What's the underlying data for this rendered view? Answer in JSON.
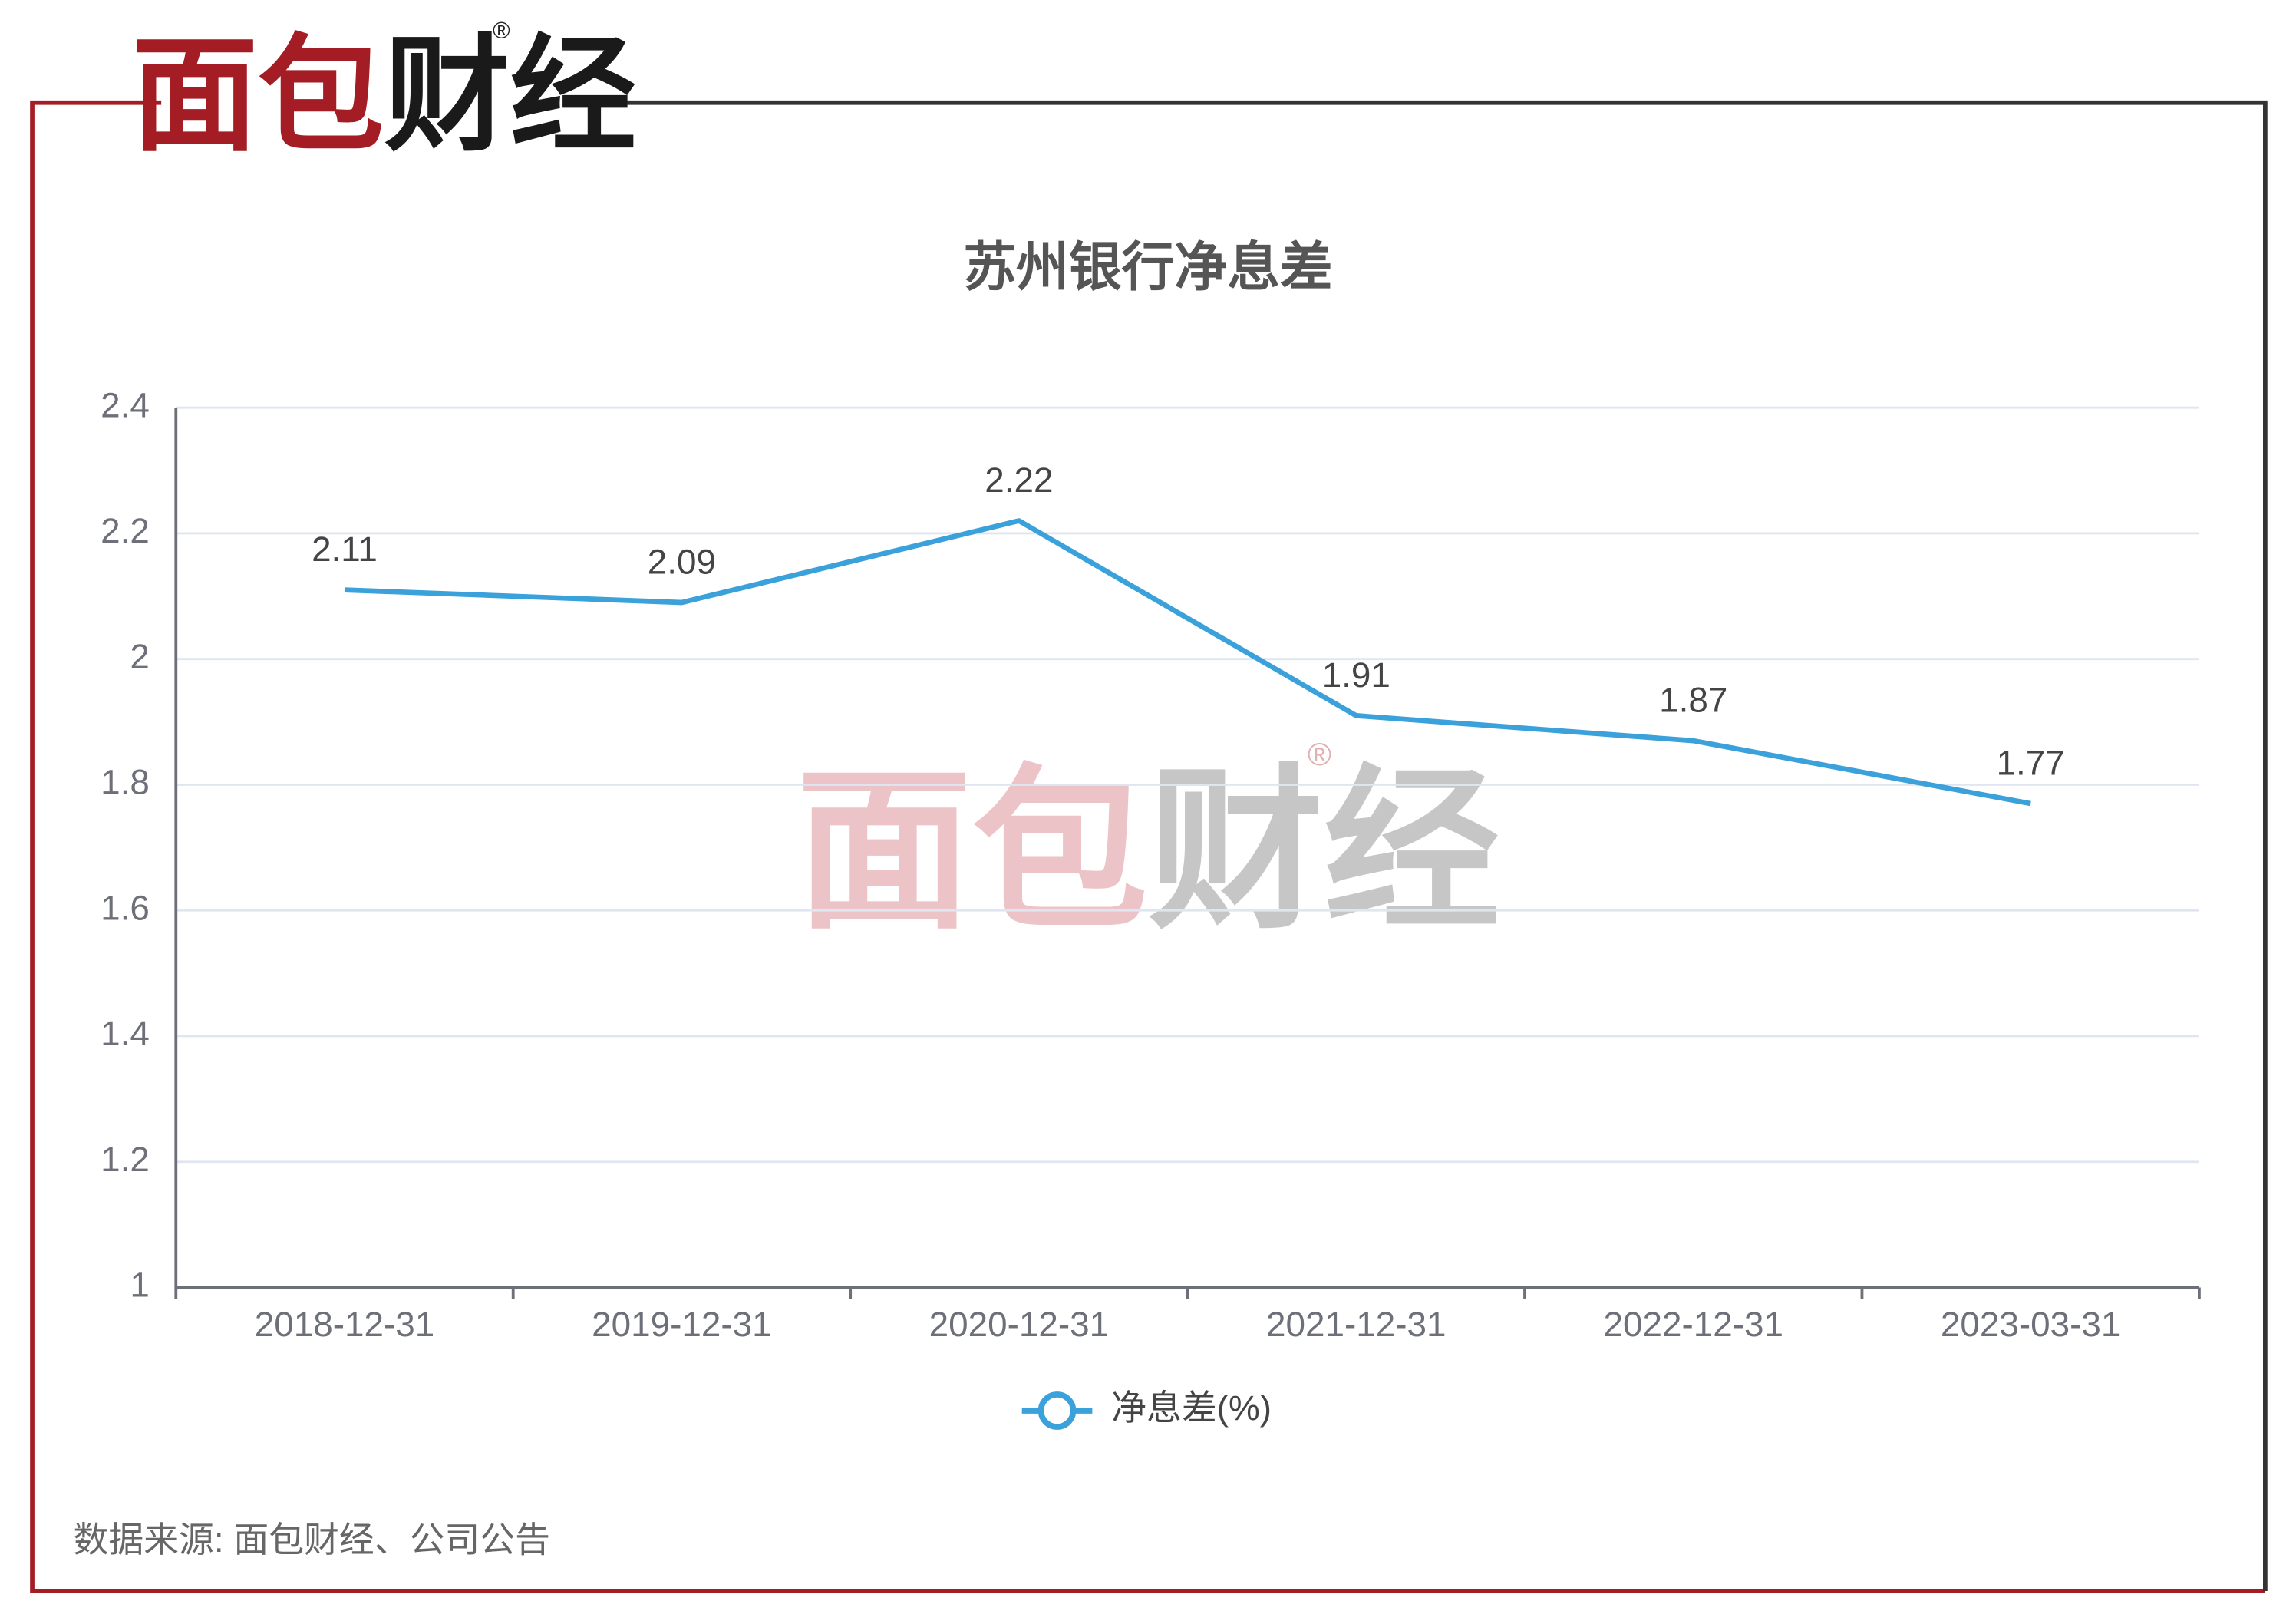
{
  "brand": {
    "name": "面包财经",
    "mark": "®"
  },
  "source": "数据来源: 面包财经、公司公告",
  "chart_data": {
    "type": "line",
    "title": "苏州银行净息差",
    "categories": [
      "2018-12-31",
      "2019-12-31",
      "2020-12-31",
      "2021-12-31",
      "2022-12-31",
      "2023-03-31"
    ],
    "series": [
      {
        "name": "净息差(%)",
        "color": "#3ba1da",
        "values": [
          2.11,
          2.09,
          2.22,
          1.91,
          1.87,
          1.77
        ]
      }
    ],
    "ylim": [
      1,
      2.4
    ],
    "yticks": [
      1,
      1.2,
      1.4,
      1.6,
      1.8,
      2,
      2.2,
      2.4
    ],
    "grid": true
  }
}
